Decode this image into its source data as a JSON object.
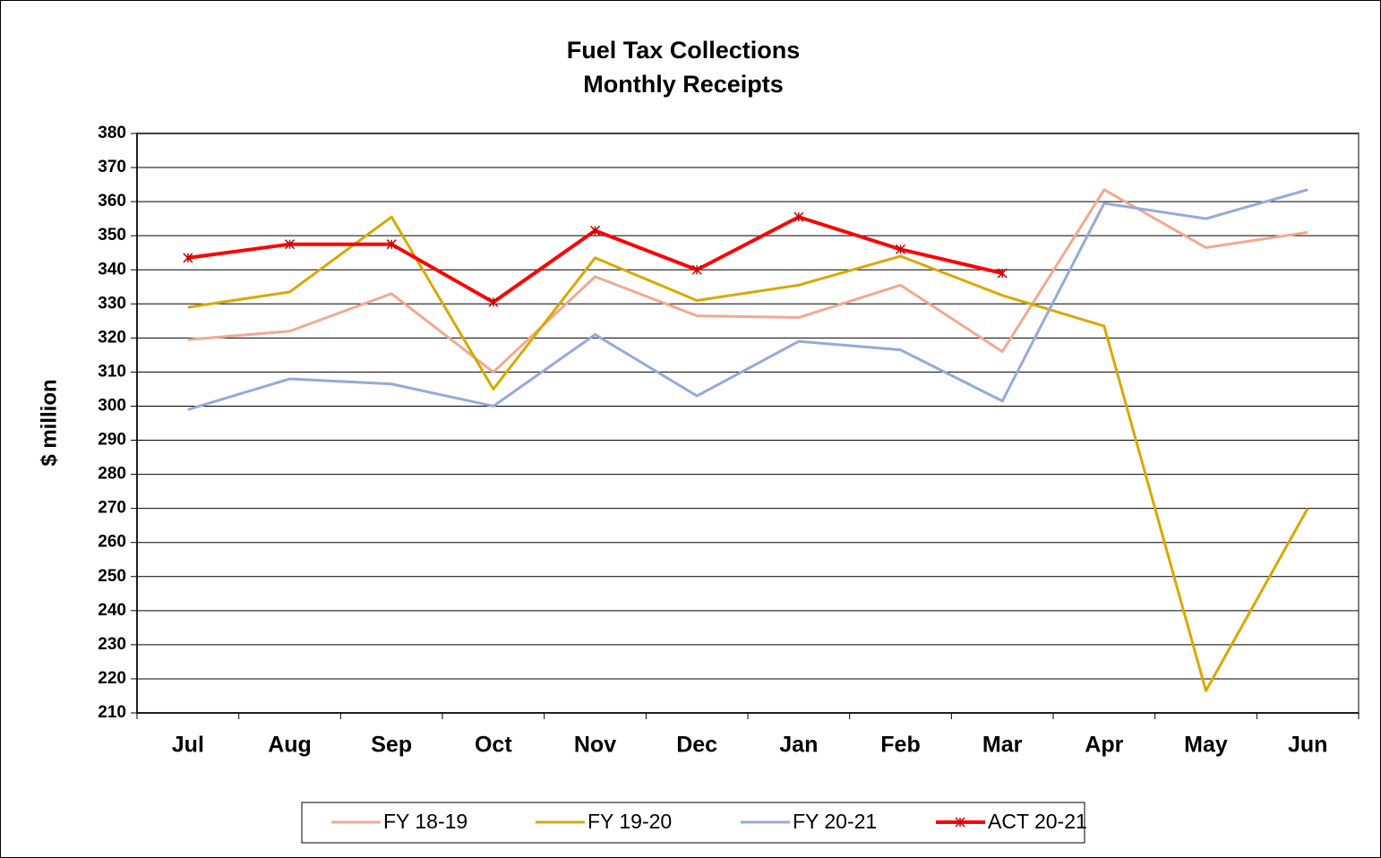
{
  "chart_data": {
    "type": "line",
    "title": "Fuel Tax Collections",
    "subtitle": "Monthly Receipts",
    "y_label": "$ million",
    "categories": [
      "Jul",
      "Aug",
      "Sep",
      "Oct",
      "Nov",
      "Dec",
      "Jan",
      "Feb",
      "Mar",
      "Apr",
      "May",
      "Jun"
    ],
    "series": [
      {
        "name": "FY 18-19",
        "color": "#f2a98f",
        "width": 3,
        "values": [
          319.5,
          322,
          333,
          310,
          338,
          326.5,
          326,
          335.5,
          316,
          363.5,
          346.5,
          351
        ]
      },
      {
        "name": "FY 19-20",
        "color": "#d9a800",
        "width": 3,
        "values": [
          329,
          333.5,
          355.5,
          305,
          343.5,
          331,
          335.5,
          344,
          332.5,
          323.5,
          216.5,
          270
        ]
      },
      {
        "name": "FY 20-21",
        "color": "#96a9d9",
        "width": 3,
        "values": [
          299,
          308,
          306.5,
          300,
          321,
          303,
          319,
          316.5,
          301.5,
          359.5,
          355,
          363.5
        ]
      },
      {
        "name": "ACT 20-21",
        "color": "#ff0000",
        "width": 4,
        "markers": true,
        "values": [
          343.5,
          347.5,
          347.5,
          330.5,
          351.5,
          340,
          355.5,
          346,
          339,
          null,
          null,
          null
        ]
      }
    ],
    "ylim": [
      210,
      380
    ],
    "yticks": [
      210,
      220,
      230,
      240,
      250,
      260,
      270,
      280,
      290,
      300,
      310,
      320,
      330,
      340,
      350,
      360,
      370,
      380
    ],
    "grid": true,
    "legend": "bottom"
  }
}
